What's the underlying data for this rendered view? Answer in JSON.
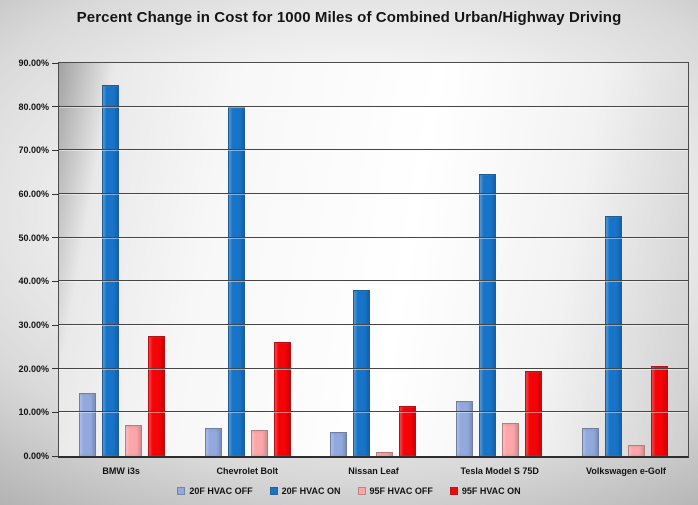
{
  "title": "Percent Change in Cost for 1000 Miles of Combined Urban/Highway Driving",
  "chart_data": {
    "type": "bar",
    "title": "Percent Change in Cost for 1000 Miles of Combined Urban/Highway Driving",
    "categories": [
      "BMW i3s",
      "Chevrolet Bolt",
      "Nissan Leaf",
      "Tesla Model S 75D",
      "Volkswagen e-Golf"
    ],
    "series": [
      {
        "name": "20F HVAC OFF",
        "color": "#92a9de",
        "values": [
          14.5,
          6.5,
          5.5,
          12.5,
          6.5
        ]
      },
      {
        "name": "20F HVAC ON",
        "color": "#1874c8",
        "values": [
          85.0,
          80.0,
          38.0,
          64.5,
          55.0
        ]
      },
      {
        "name": "95F HVAC OFF",
        "color": "#fba6a9",
        "values": [
          7.0,
          6.0,
          1.0,
          7.5,
          2.5
        ]
      },
      {
        "name": "95F HVAC ON",
        "color": "#f40307",
        "values": [
          27.5,
          26.0,
          11.5,
          19.5,
          20.5
        ]
      }
    ],
    "xlabel": "",
    "ylabel": "",
    "ylim": [
      0,
      90
    ],
    "ytick_step": 10,
    "ytick_labels": [
      "0.00%",
      "10.00%",
      "20.00%",
      "30.00%",
      "40.00%",
      "50.00%",
      "60.00%",
      "70.00%",
      "80.00%",
      "90.00%"
    ],
    "grid": true,
    "legend_position": "bottom",
    "plot_border_color": "#4c4c4c",
    "gridline_color": "#454545"
  }
}
